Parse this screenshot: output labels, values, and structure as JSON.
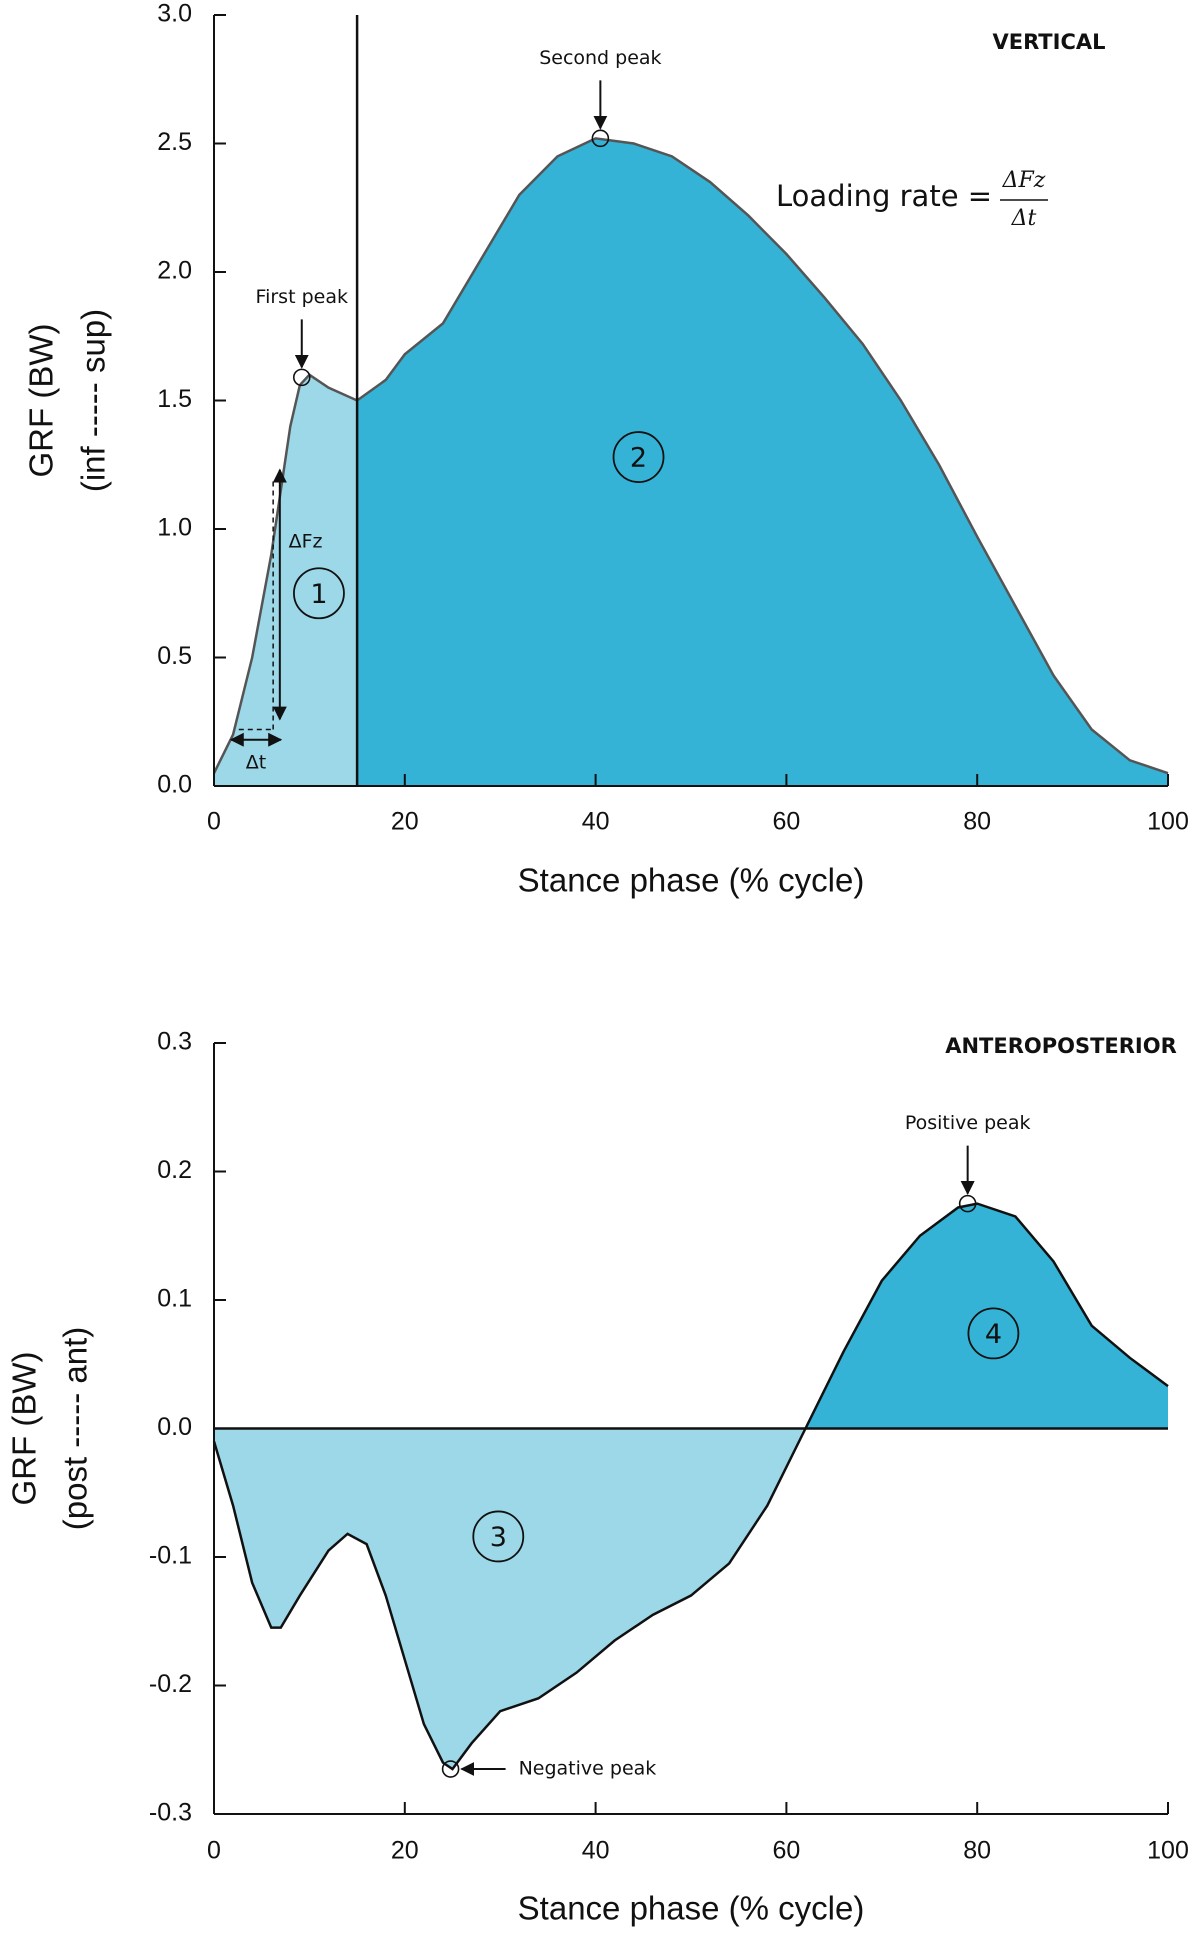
{
  "chart_data": [
    {
      "type": "area",
      "corner_label": "VERTICAL",
      "ylabel": [
        "GRF (BW)",
        "(inf ----- sup)"
      ],
      "xlabel": "Stance phase (% cycle)",
      "x": [
        0,
        2,
        4,
        6,
        8,
        9,
        10,
        12,
        15,
        18,
        20,
        24,
        28,
        32,
        36,
        40,
        44,
        48,
        52,
        56,
        60,
        64,
        68,
        72,
        76,
        80,
        84,
        88,
        92,
        96,
        100
      ],
      "values": [
        0.05,
        0.2,
        0.5,
        0.9,
        1.4,
        1.56,
        1.6,
        1.55,
        1.5,
        1.58,
        1.68,
        1.8,
        2.05,
        2.3,
        2.45,
        2.52,
        2.5,
        2.45,
        2.35,
        2.22,
        2.07,
        1.9,
        1.72,
        1.5,
        1.25,
        0.97,
        0.7,
        0.43,
        0.22,
        0.1,
        0.05
      ],
      "split": {
        "axis": "x",
        "at": 15
      },
      "colors": [
        "#9dd8e9",
        "#35b3d6"
      ],
      "line_color": "#555555",
      "xlim": [
        0,
        100
      ],
      "xticks": [
        0,
        20,
        40,
        60,
        80,
        100
      ],
      "ylim": [
        0,
        3
      ],
      "yticks": [
        {
          "value": 0,
          "label": "0.0"
        },
        0.5,
        {
          "value": 1,
          "label": "1.0"
        },
        1.5,
        {
          "value": 2,
          "label": "2.0"
        },
        2.5,
        {
          "value": 3,
          "label": "3.0"
        }
      ],
      "annotations": [
        {
          "text": "First peak",
          "x": 9.2,
          "y": 1.59
        },
        {
          "text": "Second peak",
          "x": 40.5,
          "y": 2.52
        }
      ],
      "regions": [
        "1",
        "2"
      ],
      "formula": {
        "text": "Loading rate =",
        "numerator": "ΔFz",
        "denominator": "Δt"
      },
      "delta_labels": [
        "ΔFz",
        "Δt"
      ]
    },
    {
      "type": "area",
      "corner_label": "ANTEROPOSTERIOR",
      "ylabel": [
        "GRF (BW)",
        "(post ----- ant)"
      ],
      "xlabel": "Stance phase (% cycle)",
      "x": [
        0,
        2,
        4,
        6,
        7,
        9,
        12,
        14,
        16,
        18,
        20,
        22,
        24,
        25,
        27,
        30,
        34,
        38,
        42,
        46,
        50,
        54,
        58,
        62,
        66,
        70,
        74,
        78,
        80,
        84,
        88,
        92,
        96,
        100
      ],
      "values": [
        -0.01,
        -0.06,
        -0.12,
        -0.155,
        -0.155,
        -0.13,
        -0.095,
        -0.082,
        -0.09,
        -0.13,
        -0.18,
        -0.23,
        -0.26,
        -0.265,
        -0.245,
        -0.22,
        -0.21,
        -0.19,
        -0.165,
        -0.145,
        -0.13,
        -0.105,
        -0.06,
        0.0,
        0.06,
        0.115,
        0.15,
        0.172,
        0.175,
        0.165,
        0.13,
        0.08,
        0.055,
        0.033
      ],
      "split": {
        "axis": "y",
        "at": 0
      },
      "colors": [
        "#9dd8e9",
        "#35b3d6"
      ],
      "line_color": "#111111",
      "xlim": [
        0,
        100
      ],
      "xticks": [
        0,
        20,
        40,
        60,
        80,
        100
      ],
      "ylim": [
        -0.3,
        0.3
      ],
      "yticks": [
        -0.3,
        -0.2,
        -0.1,
        {
          "value": 0,
          "label": "0.0"
        },
        0.1,
        0.2,
        0.3
      ],
      "annotations": [
        {
          "text": "Negative peak",
          "x": 24.8,
          "y": -0.265
        },
        {
          "text": "Positive peak",
          "x": 79,
          "y": 0.175
        }
      ],
      "regions": [
        "3",
        "4"
      ]
    }
  ]
}
